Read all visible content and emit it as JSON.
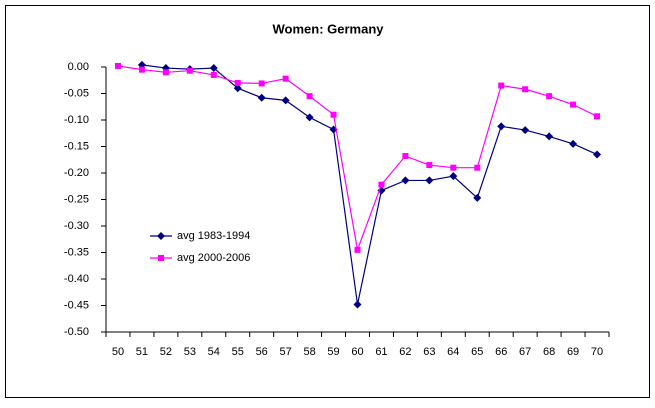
{
  "chart_data": {
    "type": "line",
    "title": "Women: Germany",
    "categories": [
      "50",
      "51",
      "52",
      "53",
      "54",
      "55",
      "56",
      "57",
      "58",
      "59",
      "60",
      "61",
      "62",
      "63",
      "64",
      "65",
      "66",
      "67",
      "68",
      "69",
      "70"
    ],
    "series": [
      {
        "name": "avg 1983-1994",
        "color": "#000080",
        "marker": "diamond",
        "values": [
          null,
          0.004,
          -0.002,
          -0.004,
          -0.002,
          -0.04,
          -0.058,
          -0.063,
          -0.095,
          -0.118,
          -0.448,
          -0.233,
          -0.214,
          -0.214,
          -0.206,
          -0.247,
          -0.112,
          -0.119,
          -0.131,
          -0.145,
          -0.165
        ]
      },
      {
        "name": "avg 2000-2006",
        "color": "#ff00ff",
        "marker": "square",
        "values": [
          0.002,
          -0.005,
          -0.01,
          -0.007,
          -0.015,
          -0.03,
          -0.031,
          -0.022,
          -0.055,
          -0.09,
          -0.345,
          -0.222,
          -0.168,
          -0.185,
          -0.19,
          -0.19,
          -0.035,
          -0.042,
          -0.055,
          -0.071,
          -0.093
        ]
      }
    ],
    "ylim": [
      -0.5,
      0
    ],
    "yticks": [
      {
        "value": -0.5,
        "label": "-0.50"
      },
      {
        "value": -0.45,
        "label": "-0.45"
      },
      {
        "value": -0.4,
        "label": "-0.40"
      },
      {
        "value": -0.35,
        "label": "-0.35"
      },
      {
        "value": -0.3,
        "label": "-0.30"
      },
      {
        "value": -0.25,
        "label": "-0.25"
      },
      {
        "value": -0.2,
        "label": "-0.20"
      },
      {
        "value": -0.15,
        "label": "-0.15"
      },
      {
        "value": -0.1,
        "label": "-0.10"
      },
      {
        "value": -0.05,
        "label": "-0.05"
      },
      {
        "value": 0,
        "label": "0.00"
      }
    ],
    "grid": false,
    "legend": "left"
  }
}
